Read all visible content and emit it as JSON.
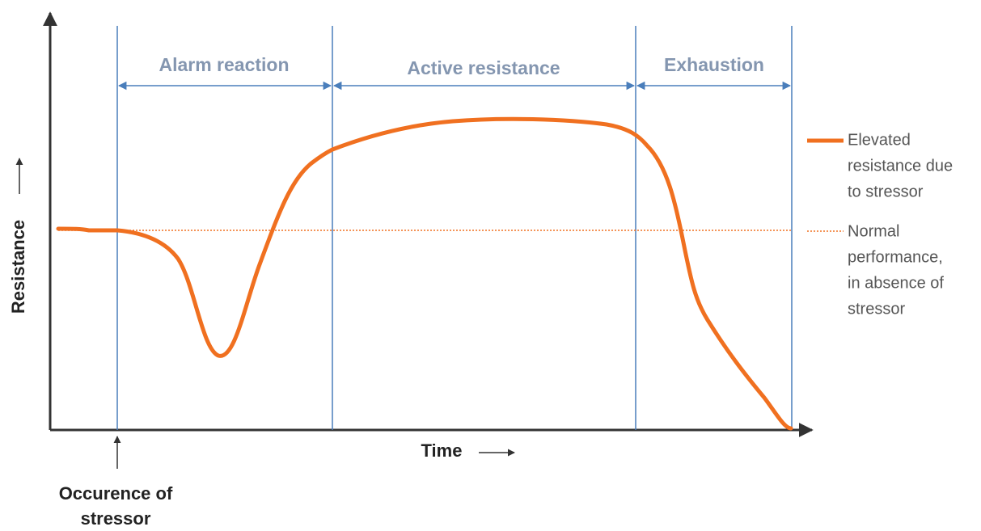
{
  "phases": [
    "Alarm reaction",
    "Active resistance",
    "Exhaustion"
  ],
  "y_axis_label": "Resistance",
  "x_axis_label": "Time",
  "stressor_label": [
    "Occurence of",
    "stressor"
  ],
  "legend": [
    {
      "lines": [
        "Elevated",
        "resistance due",
        "to stressor"
      ]
    },
    {
      "lines": [
        "Normal",
        "performance,",
        "in absence of",
        "stressor"
      ]
    }
  ]
}
